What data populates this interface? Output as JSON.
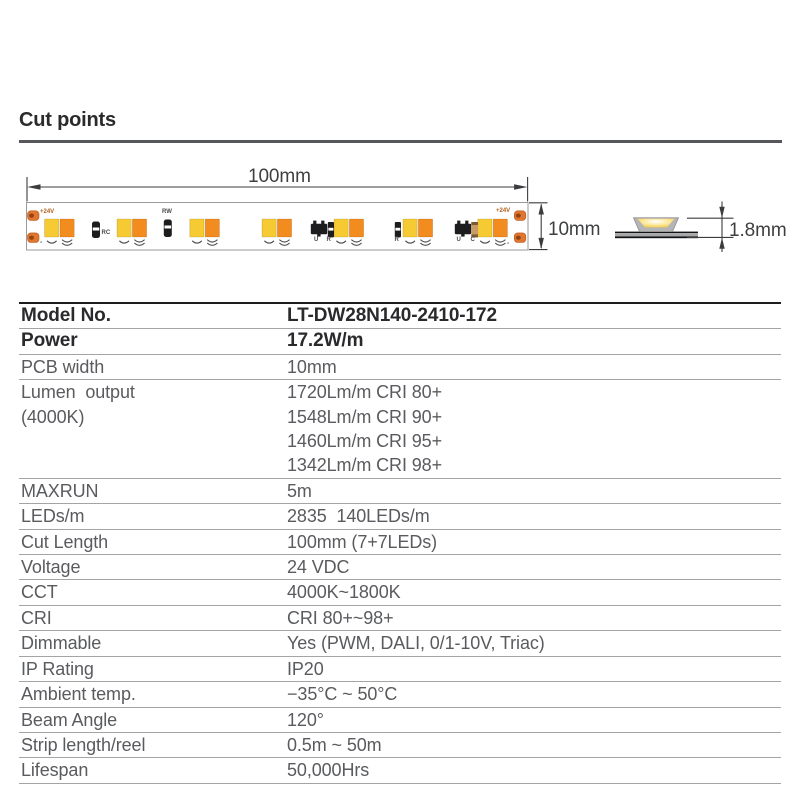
{
  "header": {
    "title": "Cut points"
  },
  "diagram": {
    "length_label": "100mm",
    "width_label": "10mm",
    "height_label": "1.8mm",
    "pad_pos_left": "+24V",
    "pad_neg_left": "-",
    "pad_pos_right": "+24V",
    "pad_neg_right": "-",
    "component_labels": {
      "rc": "RC",
      "rw": "RW",
      "u1": "U",
      "r1": "R",
      "r2": "R",
      "u2": "U",
      "c": "C"
    },
    "colors": {
      "led_warm": "#f6ca33",
      "led_orange": "#f28c1e",
      "pad": "#e0762f",
      "pad_dot": "#8a3f10",
      "component_black": "#1d1d1f",
      "capacitor_body": "#c79a66",
      "capacitor_band": "#7d5a36",
      "dimension_stroke": "#3c3c3e"
    }
  },
  "spec_table": {
    "rows": [
      {
        "label": "Model No.",
        "value": "LT-DW28N140-2410-172",
        "bold": true
      },
      {
        "label": "Power",
        "value": "17.2W/m",
        "bold": true
      },
      {
        "label": "PCB width",
        "value": "10mm"
      },
      {
        "label": "Lumen  output\n(4000K)",
        "value": "1720Lm/m CRI 80+\n1548Lm/m CRI 90+\n1460Lm/m CRI 95+\n1342Lm/m CRI 98+"
      },
      {
        "label": "MAXRUN",
        "value": "5m"
      },
      {
        "label": "LEDs/m",
        "value": "2835  140LEDs/m"
      },
      {
        "label": "Cut Length",
        "value": "100mm (7+7LEDs)"
      },
      {
        "label": "Voltage",
        "value": "24 VDC"
      },
      {
        "label": "CCT",
        "value": "4000K~1800K"
      },
      {
        "label": "CRI",
        "value": "CRI 80+~98+"
      },
      {
        "label": "Dimmable",
        "value": "Yes (PWM, DALI, 0/1-10V, Triac)"
      },
      {
        "label": "IP Rating",
        "value": "IP20"
      },
      {
        "label": "Ambient temp.",
        "value": "−35°C ~ 50°C"
      },
      {
        "label": "Beam Angle",
        "value": "120°"
      },
      {
        "label": "Strip length/reel",
        "value": "0.5m ~ 50m"
      },
      {
        "label": "Lifespan",
        "value": "50,000Hrs"
      }
    ]
  }
}
